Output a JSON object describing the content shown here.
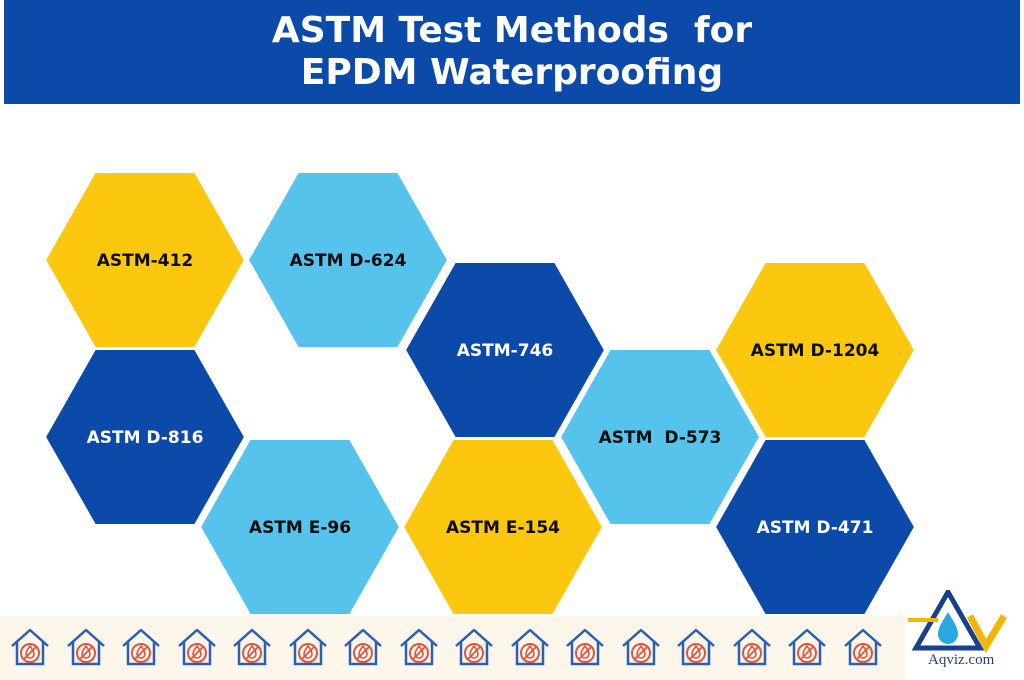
{
  "header": {
    "title_line1": "ASTM Test Methods  for",
    "title_line2": "EPDM Waterproofing",
    "background": "#0b4aa8",
    "text_color": "#ffffff"
  },
  "colors": {
    "yellow": "#fcc80f",
    "light_blue": "#56c3ec",
    "dark_blue": "#0b4aa8",
    "dark_text": "#0d0d0d",
    "light_text": "#ffffff"
  },
  "hexagons": [
    {
      "label": "ASTM-412",
      "fill": "yellow",
      "text": "dark_text"
    },
    {
      "label": "ASTM D-624",
      "fill": "light_blue",
      "text": "dark_text"
    },
    {
      "label": "ASTM-746",
      "fill": "dark_blue",
      "text": "light_text"
    },
    {
      "label": "ASTM D-1204",
      "fill": "yellow",
      "text": "dark_text"
    },
    {
      "label": "ASTM D-816",
      "fill": "dark_blue",
      "text": "light_text"
    },
    {
      "label": "ASTM  D-573",
      "fill": "light_blue",
      "text": "dark_text"
    },
    {
      "label": "ASTM E-96",
      "fill": "light_blue",
      "text": "dark_text"
    },
    {
      "label": "ASTM E-154",
      "fill": "yellow",
      "text": "dark_text"
    },
    {
      "label": "ASTM D-471",
      "fill": "dark_blue",
      "text": "light_text"
    }
  ],
  "footer": {
    "icon": "house-water-drop-icon",
    "icon_count": 16
  },
  "logo": {
    "icon": "aqviz-logo-icon",
    "text": "Aqviz.com"
  }
}
